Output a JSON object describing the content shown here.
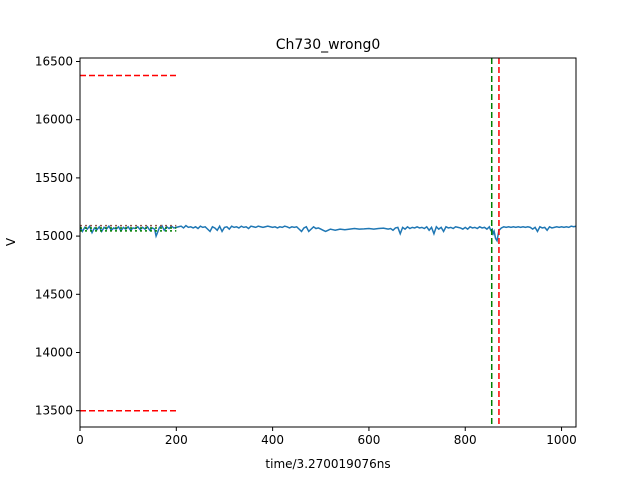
{
  "chart_data": {
    "type": "line",
    "title": "Ch730_wrong0",
    "xlabel": "time/3.270019076ns",
    "ylabel": "V",
    "xlim": [
      0,
      1030
    ],
    "ylim": [
      13360,
      16530
    ],
    "xticks": [
      0,
      200,
      400,
      600,
      800,
      1000
    ],
    "yticks": [
      13500,
      14000,
      14500,
      15000,
      15500,
      16000,
      16500
    ],
    "grid": false,
    "legend": "none",
    "series": [
      {
        "color": "#1f77b4",
        "style": "solid",
        "x": [
          0,
          5,
          10,
          15,
          20,
          25,
          30,
          35,
          40,
          45,
          50,
          55,
          60,
          65,
          70,
          75,
          80,
          85,
          90,
          95,
          100,
          105,
          110,
          115,
          120,
          125,
          130,
          135,
          140,
          145,
          150,
          155,
          158,
          160,
          165,
          170,
          175,
          180,
          185,
          190,
          195,
          200,
          205,
          210,
          215,
          220,
          225,
          230,
          235,
          240,
          245,
          250,
          255,
          260,
          265,
          270,
          275,
          280,
          285,
          290,
          295,
          300,
          305,
          310,
          315,
          320,
          325,
          330,
          335,
          340,
          345,
          350,
          355,
          360,
          365,
          370,
          375,
          380,
          385,
          390,
          395,
          400,
          405,
          410,
          415,
          420,
          425,
          430,
          435,
          440,
          445,
          450,
          455,
          460,
          465,
          470,
          475,
          480,
          485,
          490,
          495,
          500,
          505,
          510,
          515,
          520,
          525,
          530,
          540,
          550,
          560,
          570,
          580,
          590,
          600,
          610,
          620,
          630,
          640,
          645,
          650,
          655,
          660,
          665,
          670,
          675,
          680,
          685,
          690,
          695,
          700,
          705,
          710,
          715,
          720,
          725,
          730,
          735,
          740,
          745,
          750,
          755,
          760,
          765,
          770,
          775,
          780,
          785,
          790,
          795,
          800,
          805,
          810,
          815,
          820,
          825,
          830,
          835,
          840,
          845,
          850,
          853,
          856,
          858,
          860,
          863,
          866,
          870,
          875,
          880,
          885,
          890,
          895,
          900,
          905,
          910,
          915,
          920,
          925,
          930,
          935,
          940,
          945,
          950,
          955,
          960,
          965,
          970,
          975,
          980,
          985,
          990,
          995,
          1000,
          1005,
          1010,
          1015,
          1020,
          1025,
          1030
        ],
        "y": [
          15080,
          15040,
          15075,
          15060,
          15085,
          15030,
          15070,
          15055,
          15080,
          15040,
          15075,
          15060,
          15085,
          15050,
          15070,
          15060,
          15080,
          15045,
          15075,
          15060,
          15080,
          15050,
          15070,
          15065,
          15080,
          15055,
          15075,
          15060,
          15080,
          15050,
          15070,
          15060,
          15000,
          15020,
          15075,
          15090,
          15050,
          15080,
          15065,
          15085,
          15070,
          15075,
          15080,
          15085,
          15070,
          15090,
          15075,
          15080,
          15070,
          15080,
          15065,
          15085,
          15075,
          15080,
          15060,
          15040,
          15080,
          15070,
          15050,
          15085,
          15040,
          15075,
          15080,
          15060,
          15085,
          15075,
          15080,
          15070,
          15085,
          15075,
          15080,
          15065,
          15085,
          15080,
          15075,
          15085,
          15080,
          15075,
          15080,
          15085,
          15080,
          15075,
          15080,
          15070,
          15080,
          15075,
          15085,
          15080,
          15070,
          15080,
          15075,
          15080,
          15060,
          15040,
          15070,
          15080,
          15040,
          15060,
          15080,
          15065,
          15070,
          15060,
          15050,
          15040,
          15050,
          15060,
          15055,
          15050,
          15060,
          15055,
          15060,
          15065,
          15060,
          15062,
          15065,
          15060,
          15065,
          15068,
          15060,
          15065,
          15050,
          15070,
          15075,
          15020,
          15075,
          15060,
          15080,
          15065,
          15075,
          15070,
          15080,
          15070,
          15075,
          15065,
          15080,
          15050,
          15075,
          15020,
          15080,
          15060,
          15075,
          15040,
          15080,
          15070,
          15075,
          15065,
          15080,
          15075,
          15070,
          15060,
          15075,
          15060,
          15080,
          15070,
          15075,
          15065,
          15080,
          15070,
          15075,
          15060,
          15080,
          15050,
          15060,
          15020,
          15040,
          14980,
          14960,
          15050,
          15070,
          15080,
          15075,
          15080,
          15075,
          15080,
          15075,
          15080,
          15075,
          15080,
          15075,
          15080,
          15075,
          15060,
          15075,
          15040,
          15080,
          15070,
          15075,
          15050,
          15080,
          15070,
          15075,
          15080,
          15075,
          15080,
          15075,
          15080,
          15075,
          15085,
          15080,
          15085
        ]
      },
      {
        "color": "#008000",
        "style": "dotted",
        "x": [
          0,
          200
        ],
        "y": [
          15070,
          15070
        ]
      },
      {
        "color": "#008000",
        "style": "dotted",
        "x": [
          0,
          200
        ],
        "y": [
          15045,
          15045
        ]
      },
      {
        "color": "#8c564b",
        "style": "dotted",
        "x": [
          0,
          200
        ],
        "y": [
          15090,
          15090
        ]
      }
    ],
    "hlines": [
      {
        "y": 16380,
        "xmin": 0,
        "xmax": 200,
        "color": "#ff0000",
        "style": "dashed"
      },
      {
        "y": 13500,
        "xmin": 0,
        "xmax": 200,
        "color": "#ff0000",
        "style": "dashed"
      }
    ],
    "vlines": [
      {
        "x": 855,
        "color": "#008000",
        "style": "dashed"
      },
      {
        "x": 870,
        "color": "#ff0000",
        "style": "dashed"
      }
    ]
  }
}
